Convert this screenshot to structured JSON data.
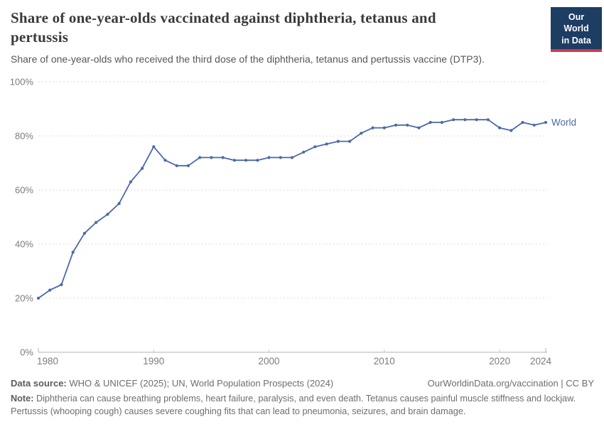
{
  "header": {
    "title": "Share of one-year-olds vaccinated against diphtheria, tetanus and pertussis",
    "subtitle": "Share of one-year-olds who received the third dose of the diphtheria, tetanus and pertussis vaccine (DTP3).",
    "logo": {
      "line1": "Our World",
      "line2": "in Data",
      "bg_color": "#1d3d63",
      "accent_color": "#d0394a"
    }
  },
  "chart_data": {
    "type": "line",
    "title": "Share of one-year-olds vaccinated against diphtheria, tetanus and pertussis",
    "subtitle": "Share of one-year-olds who received the third dose of the diphtheria, tetanus and pertussis vaccine (DTP3).",
    "xlabel": "",
    "ylabel": "",
    "xlim": [
      1980,
      2024
    ],
    "ylim": [
      0,
      100
    ],
    "xticks": [
      1980,
      1990,
      2000,
      2010,
      2020,
      2024
    ],
    "yticks": [
      0,
      20,
      40,
      60,
      80,
      100
    ],
    "ytick_suffix": "%",
    "grid": "horizontal-dashed",
    "legend_position": "end-of-line",
    "series": [
      {
        "name": "World",
        "color": "#4b69a8",
        "x": [
          1980,
          1981,
          1982,
          1983,
          1984,
          1985,
          1986,
          1987,
          1988,
          1989,
          1990,
          1991,
          1992,
          1993,
          1994,
          1995,
          1996,
          1997,
          1998,
          1999,
          2000,
          2001,
          2002,
          2003,
          2004,
          2005,
          2006,
          2007,
          2008,
          2009,
          2010,
          2011,
          2012,
          2013,
          2014,
          2015,
          2016,
          2017,
          2018,
          2019,
          2020,
          2021,
          2022,
          2023,
          2024
        ],
        "values": [
          20,
          23,
          25,
          37,
          44,
          48,
          51,
          55,
          63,
          68,
          76,
          71,
          69,
          69,
          72,
          72,
          72,
          71,
          71,
          71,
          72,
          72,
          72,
          74,
          76,
          77,
          78,
          78,
          81,
          83,
          83,
          84,
          84,
          83,
          85,
          85,
          86,
          86,
          86,
          86,
          83,
          82,
          85,
          84,
          85
        ]
      }
    ]
  },
  "footer": {
    "datasource_label": "Data source:",
    "datasource_text": " WHO & UNICEF (2025); UN, World Population Prospects (2024)",
    "link_text": "OurWorldinData.org/vaccination | CC BY",
    "note_label": "Note:",
    "note_text": " Diphtheria can cause breathing problems, heart failure, paralysis, and even death. Tetanus causes painful muscle stiffness and lockjaw. Pertussis (whooping cough) causes severe coughing fits that can lead to pneumonia, seizures, and brain damage."
  }
}
